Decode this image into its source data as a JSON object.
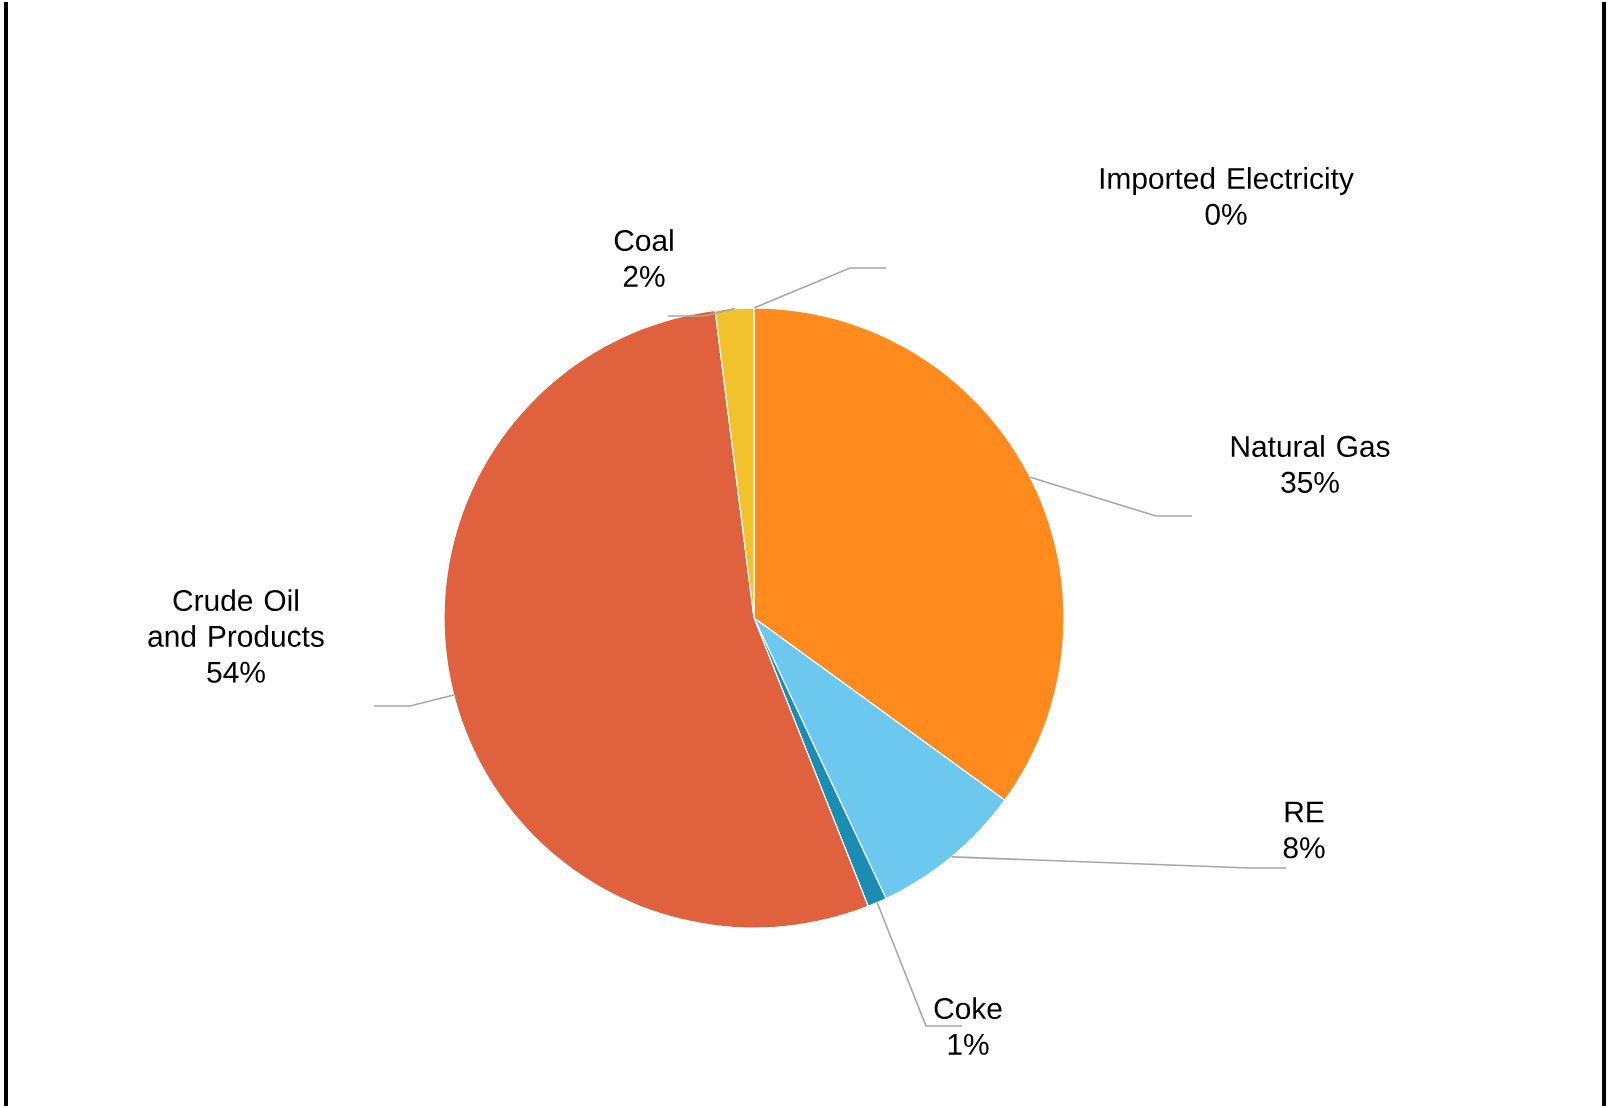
{
  "chart_data": {
    "type": "pie",
    "categories": [
      "Imported Electricity",
      "Natural Gas",
      "RE",
      "Coke",
      "Crude Oil and Products",
      "Coal"
    ],
    "values": [
      0,
      35,
      8,
      1,
      54,
      2
    ],
    "value_labels": [
      "0%",
      "35%",
      "8%",
      "1%",
      "54%",
      "2%"
    ],
    "colors": [
      "#a5a5a5",
      "#ff8a1e",
      "#6cc8ee",
      "#1b8db3",
      "#e0613d",
      "#f2c22c"
    ]
  }
}
